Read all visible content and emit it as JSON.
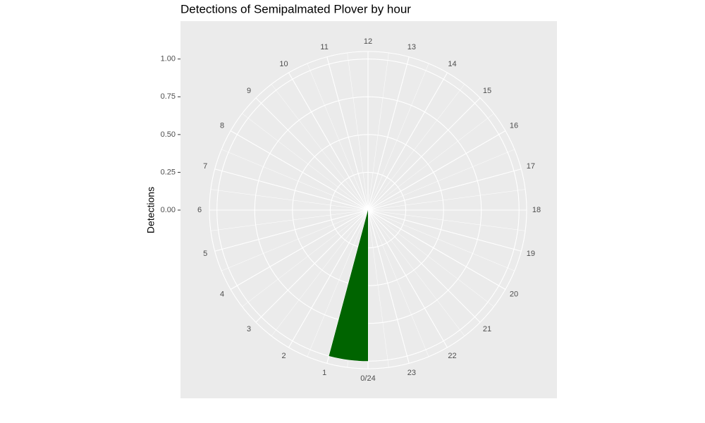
{
  "chart_data": {
    "type": "histogram",
    "polar": true,
    "title": "Detections of Semipalmated Plover by hour",
    "y_label": "Detections",
    "bins": [
      0,
      1
    ],
    "values": [
      1
    ],
    "color": "#006400",
    "xlim": [
      0,
      24
    ],
    "xticks": [
      {
        "value": 0,
        "label": "0/24"
      },
      1,
      2,
      3,
      4,
      5,
      6,
      7,
      8,
      9,
      10,
      11,
      12,
      13,
      14,
      15,
      16,
      17,
      18,
      19,
      20,
      21,
      22,
      23
    ],
    "ylim": [
      0,
      1.05
    ],
    "yticks": [
      {
        "value": 0,
        "label": "0.00"
      },
      {
        "value": 0.25,
        "label": "0.25"
      },
      {
        "value": 0.5,
        "label": "0.50"
      },
      {
        "value": 0.75,
        "label": "0.75"
      },
      {
        "value": 1,
        "label": "1.00"
      }
    ],
    "grid": true
  }
}
